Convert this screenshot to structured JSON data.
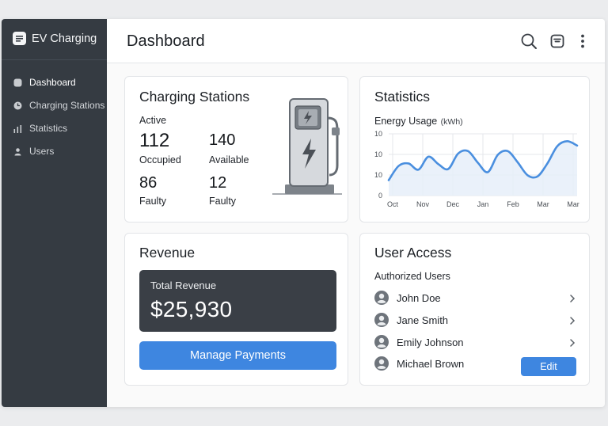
{
  "app": {
    "name": "EV Charging"
  },
  "sidebar": {
    "items": [
      {
        "label": "Dashboard",
        "icon": "dashboard-icon",
        "active": true
      },
      {
        "label": "Charging Stations",
        "icon": "clock-icon",
        "active": false
      },
      {
        "label": "Statistics",
        "icon": "bar-chart-icon",
        "active": false
      },
      {
        "label": "Users",
        "icon": "user-icon",
        "active": false
      }
    ]
  },
  "header": {
    "title": "Dashboard",
    "icons": [
      "search-icon",
      "inbox-icon",
      "more-vertical-icon"
    ]
  },
  "stations": {
    "title": "Charging Stations",
    "active_label": "Active",
    "active_value": "112",
    "col2_value": "140",
    "occupied_label": "Occupied",
    "available_label": "Available",
    "faulty_value_1": "86",
    "faulty_value_2": "12",
    "faulty_label_1": "Faulty",
    "faulty_label_2": "Faulty"
  },
  "statistics": {
    "title": "Statistics",
    "chart_title": "Energy Usage",
    "chart_unit": "(kWh)"
  },
  "chart_data": {
    "type": "area",
    "title": "Energy Usage (kWh)",
    "x_tick_labels": [
      "Oct",
      "Nov",
      "Dec",
      "Jan",
      "Feb",
      "Mar",
      "Mar"
    ],
    "y_tick_labels": [
      "10",
      "10",
      "10",
      "0"
    ],
    "grid": true,
    "legend": "none",
    "line_color": "#4a8fdf",
    "fill_color": "#e6eff9",
    "series": [
      {
        "values": [
          2.5,
          4.8,
          5.2,
          4.2,
          6.3,
          5.1,
          4.3,
          6.8,
          7.2,
          5.3,
          3.8,
          6.6,
          7.2,
          5.4,
          3.3,
          3.1,
          5.2,
          8.0,
          8.8,
          8.1
        ]
      }
    ],
    "ylim": [
      0,
      10
    ]
  },
  "revenue": {
    "title": "Revenue",
    "total_label": "Total Revenue",
    "total_value": "$25,930",
    "button_label": "Manage Payments"
  },
  "user_access": {
    "title": "User Access",
    "subtitle": "Authorized Users",
    "users": [
      {
        "name": "John Doe"
      },
      {
        "name": "Jane Smith"
      },
      {
        "name": "Emily Johnson"
      },
      {
        "name": "Michael Brown"
      }
    ],
    "edit_label": "Edit"
  },
  "colors": {
    "sidebar_bg": "#353b42",
    "accent": "#3e86e0",
    "dark_panel": "#3a3f46"
  }
}
